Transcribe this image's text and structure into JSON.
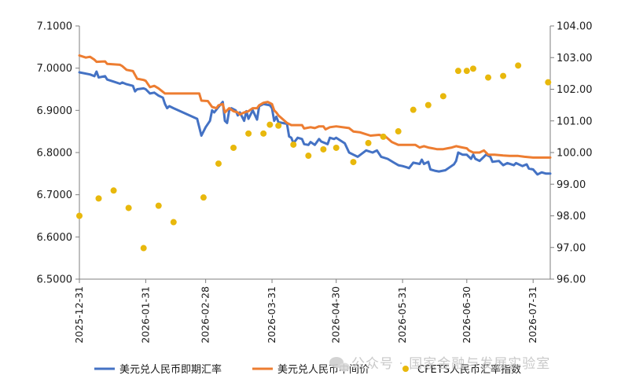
{
  "colors": {
    "spot": "#4472C4",
    "central": "#ED7D31",
    "cfets": "#E8B80C",
    "axis": "#7f7f7f"
  },
  "watermark": {
    "text": "公众号 · 国家金融与发展实验室"
  },
  "chart_data": {
    "type": "line",
    "x_axis": {
      "type": "date",
      "range": [
        "2025-12-31",
        "2026-08-08"
      ],
      "tick_labels": [
        "2025-12-31",
        "2026-01-31",
        "2026-02-28",
        "2026-03-31",
        "2026-04-30",
        "2026-05-31",
        "2026-06-30",
        "2026-07-31"
      ]
    },
    "y_left": {
      "ylim": [
        6.5,
        7.1
      ],
      "tick_labels": [
        "6.5000",
        "6.6000",
        "6.7000",
        "6.8000",
        "6.9000",
        "7.0000",
        "7.1000"
      ]
    },
    "y_right": {
      "ylim": [
        96,
        104
      ],
      "tick_labels": [
        "96.00",
        "97.00",
        "98.00",
        "99.00",
        "100.00",
        "101.00",
        "102.00",
        "103.00",
        "104.00"
      ]
    },
    "legend_position": "bottom",
    "series": [
      {
        "name": "美元兑人民币即期汇率",
        "axis": "left",
        "points": [
          [
            "2025-12-31",
            6.99
          ],
          [
            "2026-01-05",
            6.985
          ],
          [
            "2026-01-07",
            6.981
          ],
          [
            "2026-01-08",
            6.992
          ],
          [
            "2026-01-09",
            6.978
          ],
          [
            "2026-01-12",
            6.981
          ],
          [
            "2026-01-13",
            6.973
          ],
          [
            "2026-01-16",
            6.968
          ],
          [
            "2026-01-19",
            6.963
          ],
          [
            "2026-01-20",
            6.966
          ],
          [
            "2026-01-22",
            6.962
          ],
          [
            "2026-01-25",
            6.958
          ],
          [
            "2026-01-26",
            6.945
          ],
          [
            "2026-01-27",
            6.95
          ],
          [
            "2026-01-30",
            6.952
          ],
          [
            "2026-01-31",
            6.95
          ],
          [
            "2026-02-02",
            6.94
          ],
          [
            "2026-02-04",
            6.942
          ],
          [
            "2026-02-06",
            6.935
          ],
          [
            "2026-02-08",
            6.93
          ],
          [
            "2026-02-09",
            6.915
          ],
          [
            "2026-02-10",
            6.905
          ],
          [
            "2026-02-11",
            6.91
          ],
          [
            "2026-02-13",
            6.905
          ],
          [
            "2026-02-24",
            6.88
          ],
          [
            "2026-02-26",
            6.84
          ],
          [
            "2026-02-28",
            6.86
          ],
          [
            "2026-03-02",
            6.875
          ],
          [
            "2026-03-03",
            6.9
          ],
          [
            "2026-03-04",
            6.895
          ],
          [
            "2026-03-06",
            6.908
          ],
          [
            "2026-03-08",
            6.92
          ],
          [
            "2026-03-09",
            6.875
          ],
          [
            "2026-03-10",
            6.87
          ],
          [
            "2026-03-11",
            6.9
          ],
          [
            "2026-03-12",
            6.905
          ],
          [
            "2026-03-14",
            6.9
          ],
          [
            "2026-03-15",
            6.888
          ],
          [
            "2026-03-16",
            6.895
          ],
          [
            "2026-03-18",
            6.875
          ],
          [
            "2026-03-19",
            6.898
          ],
          [
            "2026-03-20",
            6.88
          ],
          [
            "2026-03-22",
            6.9
          ],
          [
            "2026-03-24",
            6.878
          ],
          [
            "2026-03-25",
            6.91
          ],
          [
            "2026-03-27",
            6.915
          ],
          [
            "2026-03-30",
            6.912
          ],
          [
            "2026-03-31",
            6.905
          ],
          [
            "2026-04-01",
            6.875
          ],
          [
            "2026-04-02",
            6.885
          ],
          [
            "2026-04-03",
            6.872
          ],
          [
            "2026-04-07",
            6.868
          ],
          [
            "2026-04-08",
            6.838
          ],
          [
            "2026-04-09",
            6.835
          ],
          [
            "2026-04-10",
            6.822
          ],
          [
            "2026-04-12",
            6.835
          ],
          [
            "2026-04-14",
            6.832
          ],
          [
            "2026-04-15",
            6.82
          ],
          [
            "2026-04-17",
            6.818
          ],
          [
            "2026-04-18",
            6.825
          ],
          [
            "2026-04-20",
            6.818
          ],
          [
            "2026-04-22",
            6.832
          ],
          [
            "2026-04-23",
            6.826
          ],
          [
            "2026-04-26",
            6.82
          ],
          [
            "2026-04-27",
            6.835
          ],
          [
            "2026-04-29",
            6.832
          ],
          [
            "2026-04-30",
            6.835
          ],
          [
            "2026-05-04",
            6.822
          ],
          [
            "2026-05-06",
            6.8
          ],
          [
            "2026-05-08",
            6.795
          ],
          [
            "2026-05-10",
            6.79
          ],
          [
            "2026-05-14",
            6.805
          ],
          [
            "2026-05-17",
            6.8
          ],
          [
            "2026-05-19",
            6.805
          ],
          [
            "2026-05-21",
            6.79
          ],
          [
            "2026-05-24",
            6.785
          ],
          [
            "2026-05-27",
            6.776
          ],
          [
            "2026-05-29",
            6.77
          ],
          [
            "2026-05-31",
            6.768
          ],
          [
            "2026-06-02",
            6.765
          ],
          [
            "2026-06-03",
            6.763
          ],
          [
            "2026-06-05",
            6.776
          ],
          [
            "2026-06-08",
            6.773
          ],
          [
            "2026-06-09",
            6.783
          ],
          [
            "2026-06-10",
            6.773
          ],
          [
            "2026-06-12",
            6.778
          ],
          [
            "2026-06-13",
            6.76
          ],
          [
            "2026-06-15",
            6.757
          ],
          [
            "2026-06-17",
            6.755
          ],
          [
            "2026-06-20",
            6.758
          ],
          [
            "2026-06-22",
            6.765
          ],
          [
            "2026-06-24",
            6.772
          ],
          [
            "2026-06-25",
            6.78
          ],
          [
            "2026-06-26",
            6.8
          ],
          [
            "2026-06-28",
            6.795
          ],
          [
            "2026-06-30",
            6.795
          ],
          [
            "2026-07-01",
            6.79
          ],
          [
            "2026-07-02",
            6.785
          ],
          [
            "2026-07-03",
            6.795
          ],
          [
            "2026-07-04",
            6.785
          ],
          [
            "2026-07-06",
            6.78
          ],
          [
            "2026-07-08",
            6.79
          ],
          [
            "2026-07-09",
            6.795
          ],
          [
            "2026-07-11",
            6.79
          ],
          [
            "2026-07-12",
            6.778
          ],
          [
            "2026-07-15",
            6.78
          ],
          [
            "2026-07-17",
            6.77
          ],
          [
            "2026-07-19",
            6.775
          ],
          [
            "2026-07-22",
            6.77
          ],
          [
            "2026-07-23",
            6.775
          ],
          [
            "2026-07-26",
            6.768
          ],
          [
            "2026-07-28",
            6.772
          ],
          [
            "2026-07-29",
            6.762
          ],
          [
            "2026-07-31",
            6.76
          ],
          [
            "2026-08-02",
            6.748
          ],
          [
            "2026-08-04",
            6.753
          ],
          [
            "2026-08-06",
            6.75
          ],
          [
            "2026-08-08",
            6.75
          ]
        ]
      },
      {
        "name": "美元兑人民币中间价",
        "axis": "left",
        "points": [
          [
            "2025-12-31",
            7.03
          ],
          [
            "2026-01-03",
            7.025
          ],
          [
            "2026-01-05",
            7.027
          ],
          [
            "2026-01-07",
            7.02
          ],
          [
            "2026-01-08",
            7.015
          ],
          [
            "2026-01-12",
            7.016
          ],
          [
            "2026-01-13",
            7.01
          ],
          [
            "2026-01-19",
            7.008
          ],
          [
            "2026-01-20",
            7.005
          ],
          [
            "2026-01-22",
            6.996
          ],
          [
            "2026-01-25",
            6.993
          ],
          [
            "2026-01-27",
            6.975
          ],
          [
            "2026-01-30",
            6.972
          ],
          [
            "2026-01-31",
            6.97
          ],
          [
            "2026-02-02",
            6.955
          ],
          [
            "2026-02-04",
            6.958
          ],
          [
            "2026-02-06",
            6.952
          ],
          [
            "2026-02-09",
            6.94
          ],
          [
            "2026-02-13",
            6.94
          ],
          [
            "2026-02-25",
            6.94
          ],
          [
            "2026-02-26",
            6.923
          ],
          [
            "2026-03-01",
            6.922
          ],
          [
            "2026-03-03",
            6.908
          ],
          [
            "2026-03-05",
            6.905
          ],
          [
            "2026-03-06",
            6.912
          ],
          [
            "2026-03-08",
            6.915
          ],
          [
            "2026-03-09",
            6.895
          ],
          [
            "2026-03-11",
            6.905
          ],
          [
            "2026-03-13",
            6.898
          ],
          [
            "2026-03-15",
            6.895
          ],
          [
            "2026-03-16",
            6.89
          ],
          [
            "2026-03-18",
            6.895
          ],
          [
            "2026-03-20",
            6.898
          ],
          [
            "2026-03-22",
            6.905
          ],
          [
            "2026-03-24",
            6.905
          ],
          [
            "2026-03-25",
            6.912
          ],
          [
            "2026-03-27",
            6.918
          ],
          [
            "2026-03-29",
            6.92
          ],
          [
            "2026-03-31",
            6.915
          ],
          [
            "2026-04-01",
            6.9
          ],
          [
            "2026-04-02",
            6.895
          ],
          [
            "2026-04-03",
            6.888
          ],
          [
            "2026-04-07",
            6.87
          ],
          [
            "2026-04-09",
            6.865
          ],
          [
            "2026-04-14",
            6.865
          ],
          [
            "2026-04-15",
            6.857
          ],
          [
            "2026-04-18",
            6.86
          ],
          [
            "2026-04-20",
            6.858
          ],
          [
            "2026-04-22",
            6.862
          ],
          [
            "2026-04-24",
            6.862
          ],
          [
            "2026-04-25",
            6.855
          ],
          [
            "2026-04-27",
            6.86
          ],
          [
            "2026-04-30",
            6.862
          ],
          [
            "2026-05-06",
            6.858
          ],
          [
            "2026-05-08",
            6.85
          ],
          [
            "2026-05-11",
            6.848
          ],
          [
            "2026-05-13",
            6.845
          ],
          [
            "2026-05-16",
            6.84
          ],
          [
            "2026-05-20",
            6.842
          ],
          [
            "2026-05-23",
            6.838
          ],
          [
            "2026-05-26",
            6.825
          ],
          [
            "2026-05-29",
            6.818
          ],
          [
            "2026-05-31",
            6.818
          ],
          [
            "2026-06-06",
            6.818
          ],
          [
            "2026-06-08",
            6.812
          ],
          [
            "2026-06-10",
            6.815
          ],
          [
            "2026-06-12",
            6.812
          ],
          [
            "2026-06-14",
            6.81
          ],
          [
            "2026-06-16",
            6.808
          ],
          [
            "2026-06-19",
            6.808
          ],
          [
            "2026-06-21",
            6.81
          ],
          [
            "2026-06-23",
            6.812
          ],
          [
            "2026-06-25",
            6.815
          ],
          [
            "2026-06-28",
            6.812
          ],
          [
            "2026-06-30",
            6.81
          ],
          [
            "2026-07-01",
            6.805
          ],
          [
            "2026-07-03",
            6.8
          ],
          [
            "2026-07-06",
            6.8
          ],
          [
            "2026-07-08",
            6.805
          ],
          [
            "2026-07-10",
            6.795
          ],
          [
            "2026-07-13",
            6.795
          ],
          [
            "2026-07-17",
            6.793
          ],
          [
            "2026-07-20",
            6.792
          ],
          [
            "2026-07-24",
            6.792
          ],
          [
            "2026-07-27",
            6.79
          ],
          [
            "2026-07-31",
            6.788
          ],
          [
            "2026-08-03",
            6.788
          ],
          [
            "2026-08-08",
            6.788
          ]
        ]
      },
      {
        "name": "CFETS人民币汇率指数",
        "axis": "right",
        "style": "scatter",
        "points": [
          [
            "2025-12-31",
            98.0
          ],
          [
            "2026-01-09",
            98.55
          ],
          [
            "2026-01-16",
            98.8
          ],
          [
            "2026-01-23",
            98.25
          ],
          [
            "2026-01-30",
            96.98
          ],
          [
            "2026-02-06",
            98.32
          ],
          [
            "2026-02-13",
            97.8
          ],
          [
            "2026-02-27",
            98.58
          ],
          [
            "2026-03-06",
            99.65
          ],
          [
            "2026-03-13",
            100.15
          ],
          [
            "2026-03-20",
            100.6
          ],
          [
            "2026-03-27",
            100.6
          ],
          [
            "2026-03-30",
            100.88
          ],
          [
            "2026-04-03",
            100.85
          ],
          [
            "2026-04-10",
            100.25
          ],
          [
            "2026-04-17",
            99.9
          ],
          [
            "2026-04-24",
            100.1
          ],
          [
            "2026-04-30",
            100.15
          ],
          [
            "2026-05-08",
            99.7
          ],
          [
            "2026-05-15",
            100.3
          ],
          [
            "2026-05-22",
            100.5
          ],
          [
            "2026-05-29",
            100.67
          ],
          [
            "2026-06-05",
            101.35
          ],
          [
            "2026-06-12",
            101.5
          ],
          [
            "2026-06-19",
            101.78
          ],
          [
            "2026-06-26",
            102.58
          ],
          [
            "2026-06-30",
            102.58
          ],
          [
            "2026-07-03",
            102.65
          ],
          [
            "2026-07-10",
            102.37
          ],
          [
            "2026-07-17",
            102.42
          ],
          [
            "2026-07-24",
            102.75
          ],
          [
            "2026-08-07",
            102.22
          ]
        ]
      }
    ]
  }
}
